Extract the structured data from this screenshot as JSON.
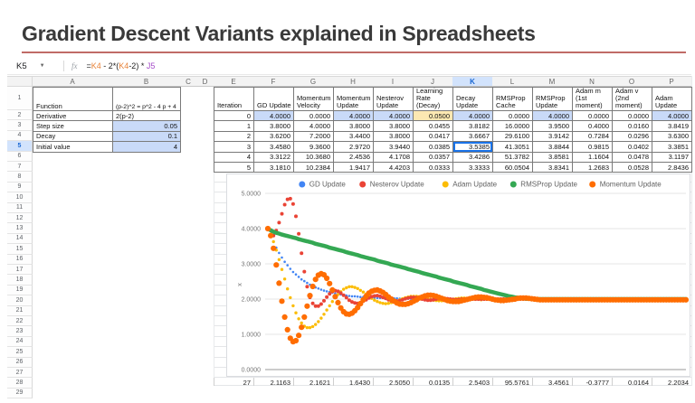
{
  "slide": {
    "title": "Gradient Descent Variants explained in Spreadsheets",
    "accent_color": "#c06b66"
  },
  "formula_bar": {
    "cell_ref": "K5",
    "fx_label": "fx",
    "formula_tokens": [
      {
        "text": "=",
        "color": "#222222"
      },
      {
        "text": "K4",
        "color": "#e8833a"
      },
      {
        "text": " - 2*(",
        "color": "#222222"
      },
      {
        "text": "K4",
        "color": "#e8833a"
      },
      {
        "text": "-2) ",
        "color": "#222222"
      },
      {
        "text": "* ",
        "color": "#222222"
      },
      {
        "text": "J5",
        "color": "#a64ec9"
      }
    ]
  },
  "sheet": {
    "column_letters": [
      "A",
      "B",
      "C",
      "D",
      "E",
      "F",
      "G",
      "H",
      "I",
      "J",
      "K",
      "L",
      "M",
      "N",
      "O",
      "P"
    ],
    "selected_column": "K",
    "selected_row": 5,
    "visible_row_count": 29,
    "param_table": {
      "rows": [
        {
          "label": "Function",
          "value": "(p-2)^2 = p^2 - 4 p + 4",
          "numeric": false,
          "highlight": false
        },
        {
          "label": "Derivative",
          "value": "2(p-2)",
          "numeric": false,
          "highlight": false
        },
        {
          "label": "Step size",
          "value": "0.05",
          "numeric": true,
          "highlight": true
        },
        {
          "label": "Decay",
          "value": "0.1",
          "numeric": true,
          "highlight": true
        },
        {
          "label": "Initial value",
          "value": "4",
          "numeric": true,
          "highlight": true
        }
      ]
    },
    "main_table": {
      "headers": [
        "Iteration",
        "GD Update",
        "Momentum Velocity",
        "Momentum Update",
        "Nesterov Update",
        "Learning Rate (Decay)",
        "Decay Update",
        "RMSProp Cache",
        "RMSProp Update",
        "Adam m (1st moment)",
        "Adam v (2nd moment)",
        "Adam Update"
      ],
      "rows": [
        [
          "0",
          "4.0000",
          "0.0000",
          "4.0000",
          "4.0000",
          "0.0500",
          "4.0000",
          "0.0000",
          "4.0000",
          "0.0000",
          "0.0000",
          "4.0000"
        ],
        [
          "1",
          "3.8000",
          "4.0000",
          "3.8000",
          "3.8000",
          "0.0455",
          "3.8182",
          "16.0000",
          "3.9500",
          "0.4000",
          "0.0160",
          "3.8419"
        ],
        [
          "2",
          "3.6200",
          "7.2000",
          "3.4400",
          "3.8000",
          "0.0417",
          "3.6667",
          "29.6100",
          "3.9142",
          "0.7284",
          "0.0296",
          "3.6300"
        ],
        [
          "3",
          "3.4580",
          "9.3600",
          "2.9720",
          "3.9440",
          "0.0385",
          "3.5385",
          "41.3051",
          "3.8844",
          "0.9815",
          "0.0402",
          "3.3851"
        ],
        [
          "4",
          "3.3122",
          "10.3680",
          "2.4536",
          "4.1708",
          "0.0357",
          "3.4286",
          "51.3782",
          "3.8581",
          "1.1604",
          "0.0478",
          "3.1197"
        ],
        [
          "5",
          "3.1810",
          "10.2384",
          "1.9417",
          "4.4203",
          "0.0333",
          "3.3333",
          "60.0504",
          "3.8341",
          "1.2683",
          "0.0528",
          "2.8436"
        ]
      ],
      "first_row_blue_cols": [
        1,
        3,
        4,
        6,
        8,
        11
      ],
      "first_row_yellow_cols": [
        5
      ],
      "selected_cell": {
        "row_index": 3,
        "col_index": 6
      },
      "highlight_blue": "#c9daf8",
      "highlight_yellow": "#fce8b2",
      "selection_color": "#1a73e8"
    },
    "partial_bottom_row": [
      "27",
      "2.1163",
      "2.1621",
      "1.6430",
      "2.5050",
      "0.0135",
      "2.5403",
      "95.5761",
      "3.4561",
      "-0.3777",
      "0.0164",
      "2.2034"
    ]
  },
  "chart_data": {
    "type": "scatter",
    "title": "",
    "xlabel": "",
    "ylabel": "x",
    "ylim": [
      0,
      5
    ],
    "ytick_labels": [
      "5.0000",
      "4.0000",
      "3.0000",
      "2.0000",
      "1.0000",
      "0.0000"
    ],
    "yticks": [
      5,
      4,
      3,
      2,
      1,
      0
    ],
    "x_count": 150,
    "grid": true,
    "legend_position": "top-center",
    "series": [
      {
        "name": "GD Update",
        "color": "#4285f4",
        "style": "dots",
        "r": 1.3,
        "z": 0,
        "values": [
          4.0,
          3.8,
          3.62,
          3.46,
          3.31,
          3.18,
          3.06,
          2.96,
          2.86,
          2.77,
          2.7,
          2.63,
          2.56,
          2.51,
          2.46,
          2.41,
          2.37,
          2.33,
          2.3,
          2.27,
          2.24,
          2.22,
          2.2,
          2.18,
          2.16,
          2.14,
          2.13,
          2.12,
          2.1,
          2.09,
          2.08,
          2.08,
          2.07,
          2.06,
          2.06,
          2.05,
          2.05,
          2.04,
          2.04,
          2.03,
          2.03,
          2.03,
          2.03,
          2.02,
          2.02,
          2.02,
          2.02,
          2.01,
          2.01,
          2.01,
          2.01,
          2.01,
          2.01,
          2.01,
          2.01,
          2.01,
          2.0,
          2.0,
          2.0,
          2.0,
          2.0
        ]
      },
      {
        "name": "Nesterov Update",
        "color": "#ea4335",
        "style": "dots",
        "r": 2.0,
        "z": 2,
        "values": [
          4.0,
          3.8,
          3.8,
          3.94,
          4.17,
          4.42,
          4.68,
          4.83,
          4.85,
          4.7,
          4.35,
          3.85,
          3.3,
          2.78,
          2.35,
          2.05,
          1.88,
          1.8,
          1.8,
          1.86,
          1.95,
          2.06,
          2.15,
          2.21,
          2.24,
          2.22,
          2.17,
          2.11,
          2.04,
          1.97,
          1.92,
          1.89,
          1.88,
          1.9,
          1.94,
          1.98,
          2.03,
          2.07,
          2.09,
          2.1,
          2.08,
          2.05,
          2.02,
          1.98,
          1.95,
          1.94,
          1.94,
          1.95,
          1.98,
          2.01,
          2.03,
          2.05,
          2.05,
          2.04,
          2.02,
          2.0,
          1.98,
          1.97,
          1.97,
          1.98,
          2.0,
          2.01,
          2.02,
          2.02,
          2.01,
          2.0,
          1.99,
          1.98,
          1.99,
          2.0
        ]
      },
      {
        "name": "Adam Update",
        "color": "#fbbc04",
        "style": "dots",
        "r": 1.7,
        "z": 1,
        "values": [
          4.0,
          3.84,
          3.63,
          3.39,
          3.12,
          2.84,
          2.57,
          2.29,
          2.04,
          1.81,
          1.61,
          1.44,
          1.32,
          1.23,
          1.19,
          1.19,
          1.22,
          1.28,
          1.36,
          1.46,
          1.57,
          1.69,
          1.81,
          1.93,
          2.04,
          2.13,
          2.21,
          2.28,
          2.32,
          2.35,
          2.35,
          2.33,
          2.3,
          2.25,
          2.2,
          2.14,
          2.08,
          2.02,
          1.97,
          1.93,
          1.9,
          1.88,
          1.87,
          1.88,
          1.9,
          1.92,
          1.95,
          1.98,
          2.01,
          2.04,
          2.06,
          2.08,
          2.08,
          2.08,
          2.07,
          2.05,
          2.03,
          2.01,
          1.99,
          1.97,
          1.96,
          1.95,
          1.95,
          1.96,
          1.97,
          1.98,
          2.0,
          2.01,
          2.02,
          2.03,
          2.03,
          2.02,
          2.01,
          2.0,
          1.99,
          1.99,
          1.98,
          1.99,
          1.99,
          2.0
        ]
      },
      {
        "name": "RMSProp Update",
        "color": "#34a853",
        "style": "line",
        "width": 4.5,
        "z": 3,
        "values": [
          4.0,
          3.95,
          3.91,
          3.88,
          3.86,
          3.83,
          3.81,
          3.79,
          3.77,
          3.75,
          3.73,
          3.7,
          3.68,
          3.66,
          3.64,
          3.62,
          3.6,
          3.57,
          3.55,
          3.53,
          3.51,
          3.49,
          3.46,
          3.44,
          3.42,
          3.4,
          3.38,
          3.36,
          3.33,
          3.31,
          3.29,
          3.27,
          3.25,
          3.22,
          3.2,
          3.18,
          3.16,
          3.14,
          3.12,
          3.09,
          3.07,
          3.05,
          3.03,
          3.01,
          2.98,
          2.96,
          2.94,
          2.92,
          2.9,
          2.88,
          2.85,
          2.83,
          2.81,
          2.79,
          2.77,
          2.74,
          2.72,
          2.7,
          2.68,
          2.66,
          2.64,
          2.61,
          2.59,
          2.57,
          2.55,
          2.53,
          2.5,
          2.48,
          2.46,
          2.44,
          2.42,
          2.4,
          2.37,
          2.35,
          2.33,
          2.31,
          2.29,
          2.26,
          2.24,
          2.22,
          2.2,
          2.18,
          2.16,
          2.14,
          2.12,
          2.1,
          2.08,
          2.07,
          2.05,
          2.04,
          2.03,
          2.02,
          2.01,
          2.01,
          2.0,
          2.0
        ]
      },
      {
        "name": "Momentum Update",
        "color": "#ff6d01",
        "style": "dots",
        "r": 3.1,
        "z": 4,
        "values": [
          4.0,
          3.8,
          3.44,
          2.97,
          2.45,
          1.94,
          1.49,
          1.13,
          0.89,
          0.79,
          0.82,
          0.97,
          1.2,
          1.49,
          1.8,
          2.1,
          2.36,
          2.56,
          2.68,
          2.72,
          2.69,
          2.59,
          2.44,
          2.26,
          2.07,
          1.9,
          1.75,
          1.64,
          1.58,
          1.57,
          1.6,
          1.67,
          1.76,
          1.87,
          1.98,
          2.08,
          2.17,
          2.22,
          2.25,
          2.26,
          2.23,
          2.19,
          2.13,
          2.06,
          2.0,
          1.94,
          1.89,
          1.86,
          1.85,
          1.85,
          1.87,
          1.9,
          1.94,
          1.98,
          2.03,
          2.06,
          2.09,
          2.11,
          2.11,
          2.1,
          2.08,
          2.05,
          2.02,
          1.99,
          1.96,
          1.94,
          1.93,
          1.93,
          1.93,
          1.95,
          1.97,
          1.99,
          2.01,
          2.03,
          2.05,
          2.06,
          2.06,
          2.05,
          2.04,
          2.02,
          2.0,
          1.98,
          1.97,
          1.96,
          1.96,
          1.97,
          1.98,
          1.99,
          2.0,
          2.02,
          2.03,
          2.03,
          2.03,
          2.02,
          2.01,
          2.0,
          1.99,
          1.98,
          1.98,
          1.98
        ]
      }
    ]
  }
}
